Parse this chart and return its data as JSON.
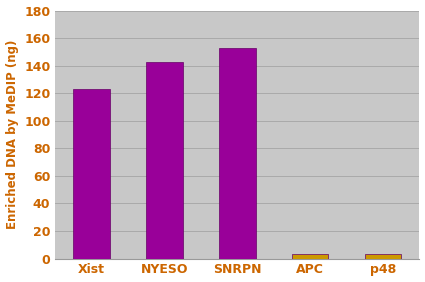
{
  "categories": [
    "Xist",
    "NYESO",
    "SNRPN",
    "APC",
    "p48"
  ],
  "values": [
    123,
    143,
    153,
    3,
    3
  ],
  "bar_colors": [
    "#990099",
    "#990099",
    "#990099",
    "#CC9900",
    "#CC9900"
  ],
  "ylabel": "Enriched DNA by MeDIP (ng)",
  "ylim": [
    0,
    180
  ],
  "yticks": [
    0,
    20,
    40,
    60,
    80,
    100,
    120,
    140,
    160,
    180
  ],
  "plot_bg_color": "#C8C8C8",
  "figure_bg_color": "#FFFFFF",
  "bottom_bg_color": "#FFFFFF",
  "bar_width": 0.5,
  "grid_color": "#AAAAAA",
  "label_color": "#CC6600",
  "tick_color": "#CC6600",
  "ylabel_fontsize": 8.5,
  "tick_fontsize": 9,
  "bar_edge_color": "#660066"
}
